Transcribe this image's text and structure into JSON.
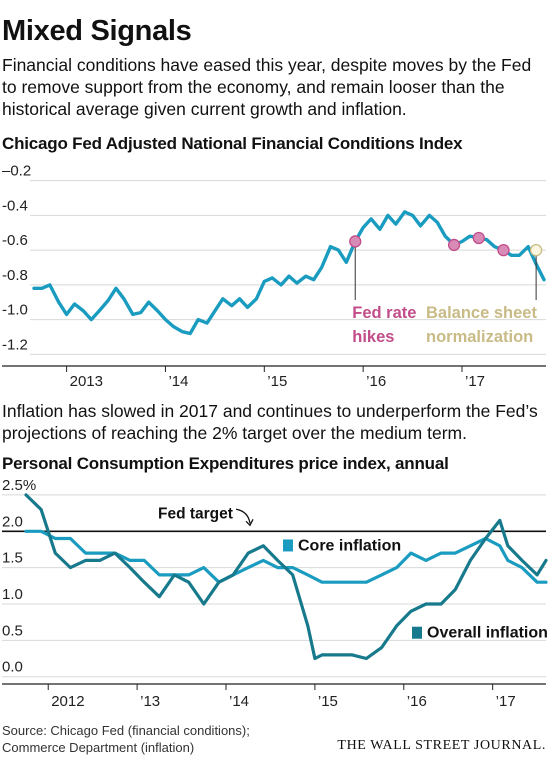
{
  "headline": "Mixed Signals",
  "dek": "Financial conditions have eased this year, despite moves by the Fed to remove support from the economy, and remain looser than the historical average given current growth and inflation.",
  "dek2": "Inflation has slowed in 2017 and continues to underperform the Fed’s projections of reaching the 2% target over the medium term.",
  "source": "Source: Chicago Fed (financial conditions); Commerce Department (inflation)",
  "masthead": "THE WALL STREET JOURNAL.",
  "colors": {
    "line": "#1a9bc0",
    "dark_line": "#17798c",
    "hike": "#c24d8a",
    "normalization": "#c9bb86",
    "grid": "#d8d8d8"
  },
  "chart_data": [
    {
      "type": "line",
      "title": "Chicago Fed Adjusted National Financial Conditions Index",
      "ylim": [
        -1.25,
        -0.15
      ],
      "yticks": [
        -0.2,
        -0.4,
        -0.6,
        -0.8,
        -1.0,
        -1.2
      ],
      "ytick_labels": [
        "–0.2",
        "-0.4",
        "-0.6",
        "-0.8",
        "-1.0",
        "-1.2"
      ],
      "xlim": [
        2012.67,
        2017.85
      ],
      "xticks": [
        2013,
        2014,
        2015,
        2016,
        2017
      ],
      "xtick_labels": [
        "2013",
        "’14",
        "’15",
        "’16",
        "’17"
      ],
      "grid": true,
      "series": [
        {
          "color": "#1a9bc0",
          "points": [
            [
              2012.67,
              -0.82
            ],
            [
              2012.75,
              -0.82
            ],
            [
              2012.83,
              -0.8
            ],
            [
              2012.92,
              -0.9
            ],
            [
              2013.0,
              -0.97
            ],
            [
              2013.08,
              -0.91
            ],
            [
              2013.17,
              -0.95
            ],
            [
              2013.25,
              -1.0
            ],
            [
              2013.33,
              -0.95
            ],
            [
              2013.42,
              -0.89
            ],
            [
              2013.5,
              -0.82
            ],
            [
              2013.58,
              -0.88
            ],
            [
              2013.67,
              -0.97
            ],
            [
              2013.75,
              -0.96
            ],
            [
              2013.83,
              -0.9
            ],
            [
              2013.92,
              -0.95
            ],
            [
              2014.0,
              -1.0
            ],
            [
              2014.08,
              -1.04
            ],
            [
              2014.17,
              -1.07
            ],
            [
              2014.25,
              -1.08
            ],
            [
              2014.33,
              -1.0
            ],
            [
              2014.42,
              -1.02
            ],
            [
              2014.5,
              -0.95
            ],
            [
              2014.58,
              -0.88
            ],
            [
              2014.67,
              -0.92
            ],
            [
              2014.75,
              -0.88
            ],
            [
              2014.83,
              -0.93
            ],
            [
              2014.92,
              -0.88
            ],
            [
              2015.0,
              -0.78
            ],
            [
              2015.08,
              -0.76
            ],
            [
              2015.17,
              -0.8
            ],
            [
              2015.25,
              -0.75
            ],
            [
              2015.33,
              -0.79
            ],
            [
              2015.42,
              -0.75
            ],
            [
              2015.5,
              -0.77
            ],
            [
              2015.58,
              -0.7
            ],
            [
              2015.67,
              -0.58
            ],
            [
              2015.75,
              -0.6
            ],
            [
              2015.83,
              -0.67
            ],
            [
              2015.92,
              -0.55
            ],
            [
              2016.0,
              -0.47
            ],
            [
              2016.08,
              -0.42
            ],
            [
              2016.17,
              -0.48
            ],
            [
              2016.25,
              -0.4
            ],
            [
              2016.33,
              -0.45
            ],
            [
              2016.42,
              -0.38
            ],
            [
              2016.5,
              -0.4
            ],
            [
              2016.58,
              -0.46
            ],
            [
              2016.67,
              -0.4
            ],
            [
              2016.75,
              -0.44
            ],
            [
              2016.83,
              -0.52
            ],
            [
              2016.92,
              -0.57
            ],
            [
              2017.0,
              -0.55
            ],
            [
              2017.08,
              -0.52
            ],
            [
              2017.17,
              -0.53
            ],
            [
              2017.25,
              -0.54
            ],
            [
              2017.33,
              -0.58
            ],
            [
              2017.42,
              -0.6
            ],
            [
              2017.5,
              -0.63
            ],
            [
              2017.58,
              -0.63
            ],
            [
              2017.67,
              -0.58
            ],
            [
              2017.75,
              -0.68
            ],
            [
              2017.83,
              -0.77
            ]
          ]
        }
      ],
      "markers": [
        {
          "x": 2015.92,
          "y": -0.55,
          "kind": "hike"
        },
        {
          "x": 2016.92,
          "y": -0.57,
          "kind": "hike"
        },
        {
          "x": 2017.17,
          "y": -0.53,
          "kind": "hike"
        },
        {
          "x": 2017.42,
          "y": -0.6,
          "kind": "hike"
        },
        {
          "x": 2017.75,
          "y": -0.6,
          "kind": "normalization"
        }
      ],
      "annotations": [
        {
          "lines": [
            "Fed rate",
            "hikes"
          ],
          "color": "#c24d8a"
        },
        {
          "lines": [
            "Balance sheet",
            "normalization"
          ],
          "color": "#c9bb86"
        }
      ]
    },
    {
      "type": "line",
      "title": "Personal Consumption Expenditures price index, annual",
      "ylim": [
        -0.1,
        2.65
      ],
      "yticks": [
        2.5,
        2.0,
        1.5,
        1.0,
        0.5,
        0.0
      ],
      "ytick_labels": [
        "2.5%",
        "2.0",
        "1.5",
        "1.0",
        "0.5",
        "0.0"
      ],
      "xlim": [
        2011.75,
        2017.6
      ],
      "xticks": [
        2012,
        2013,
        2014,
        2015,
        2016,
        2017
      ],
      "xtick_labels": [
        "2012",
        "’13",
        "’14",
        "’15",
        "’16",
        "’17"
      ],
      "grid": true,
      "reference_line": {
        "y": 2.0,
        "label": "Fed target"
      },
      "series": [
        {
          "name": "Core inflation",
          "color": "#1a9bc0",
          "points": [
            [
              2011.75,
              2.0
            ],
            [
              2011.92,
              2.0
            ],
            [
              2012.08,
              1.9
            ],
            [
              2012.25,
              1.9
            ],
            [
              2012.42,
              1.7
            ],
            [
              2012.58,
              1.7
            ],
            [
              2012.75,
              1.7
            ],
            [
              2012.92,
              1.6
            ],
            [
              2013.08,
              1.6
            ],
            [
              2013.25,
              1.4
            ],
            [
              2013.42,
              1.4
            ],
            [
              2013.58,
              1.4
            ],
            [
              2013.75,
              1.5
            ],
            [
              2013.92,
              1.3
            ],
            [
              2014.08,
              1.4
            ],
            [
              2014.25,
              1.5
            ],
            [
              2014.42,
              1.6
            ],
            [
              2014.58,
              1.5
            ],
            [
              2014.75,
              1.5
            ],
            [
              2014.92,
              1.4
            ],
            [
              2015.08,
              1.3
            ],
            [
              2015.25,
              1.3
            ],
            [
              2015.42,
              1.3
            ],
            [
              2015.58,
              1.3
            ],
            [
              2015.75,
              1.4
            ],
            [
              2015.92,
              1.5
            ],
            [
              2016.08,
              1.7
            ],
            [
              2016.25,
              1.6
            ],
            [
              2016.42,
              1.7
            ],
            [
              2016.58,
              1.7
            ],
            [
              2016.75,
              1.8
            ],
            [
              2016.92,
              1.9
            ],
            [
              2017.08,
              1.8
            ],
            [
              2017.17,
              1.6
            ],
            [
              2017.33,
              1.5
            ],
            [
              2017.5,
              1.3
            ],
            [
              2017.6,
              1.3
            ]
          ]
        },
        {
          "name": "Overall inflation",
          "color": "#17798c",
          "points": [
            [
              2011.75,
              2.5
            ],
            [
              2011.92,
              2.3
            ],
            [
              2012.08,
              1.7
            ],
            [
              2012.25,
              1.5
            ],
            [
              2012.42,
              1.6
            ],
            [
              2012.58,
              1.6
            ],
            [
              2012.75,
              1.7
            ],
            [
              2012.92,
              1.5
            ],
            [
              2013.08,
              1.3
            ],
            [
              2013.25,
              1.1
            ],
            [
              2013.42,
              1.4
            ],
            [
              2013.58,
              1.3
            ],
            [
              2013.75,
              1.0
            ],
            [
              2013.92,
              1.3
            ],
            [
              2014.08,
              1.4
            ],
            [
              2014.25,
              1.7
            ],
            [
              2014.42,
              1.8
            ],
            [
              2014.58,
              1.6
            ],
            [
              2014.75,
              1.4
            ],
            [
              2014.92,
              0.7
            ],
            [
              2015.0,
              0.25
            ],
            [
              2015.08,
              0.3
            ],
            [
              2015.25,
              0.3
            ],
            [
              2015.42,
              0.3
            ],
            [
              2015.58,
              0.25
            ],
            [
              2015.75,
              0.4
            ],
            [
              2015.92,
              0.7
            ],
            [
              2016.08,
              0.9
            ],
            [
              2016.25,
              1.0
            ],
            [
              2016.42,
              1.0
            ],
            [
              2016.58,
              1.2
            ],
            [
              2016.75,
              1.6
            ],
            [
              2016.92,
              1.9
            ],
            [
              2017.08,
              2.15
            ],
            [
              2017.17,
              1.8
            ],
            [
              2017.33,
              1.6
            ],
            [
              2017.5,
              1.4
            ],
            [
              2017.6,
              1.6
            ]
          ]
        }
      ]
    }
  ]
}
